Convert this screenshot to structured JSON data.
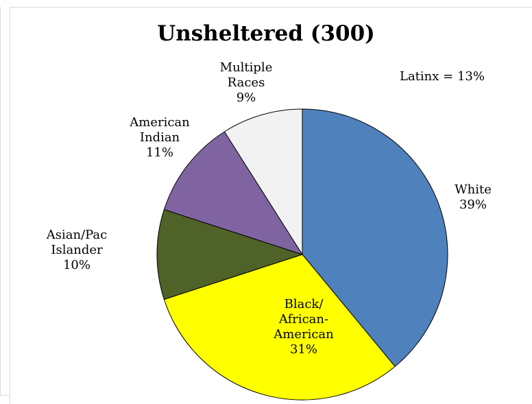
{
  "title": "Unsheltered (300)",
  "note": "Latinx = 13%",
  "chart_data": {
    "type": "pie",
    "title": "Unsheltered (300)",
    "slices": [
      {
        "key": "white",
        "label_lines": [
          "White"
        ],
        "pct_label": "39%",
        "value": 39,
        "color": "#4f81bd"
      },
      {
        "key": "black",
        "label_lines": [
          "Black/",
          "African-",
          "American"
        ],
        "pct_label": "31%",
        "value": 31,
        "color": "#ffff00"
      },
      {
        "key": "asian",
        "label_lines": [
          "Asian/Pac",
          "Islander"
        ],
        "pct_label": "10%",
        "value": 10,
        "color": "#4f6228"
      },
      {
        "key": "native",
        "label_lines": [
          "American",
          "Indian"
        ],
        "pct_label": "11%",
        "value": 11,
        "color": "#8064a2"
      },
      {
        "key": "multiple",
        "label_lines": [
          "Multiple",
          "Races"
        ],
        "pct_label": "9%",
        "value": 9,
        "color": "#f2f2f2"
      }
    ]
  }
}
